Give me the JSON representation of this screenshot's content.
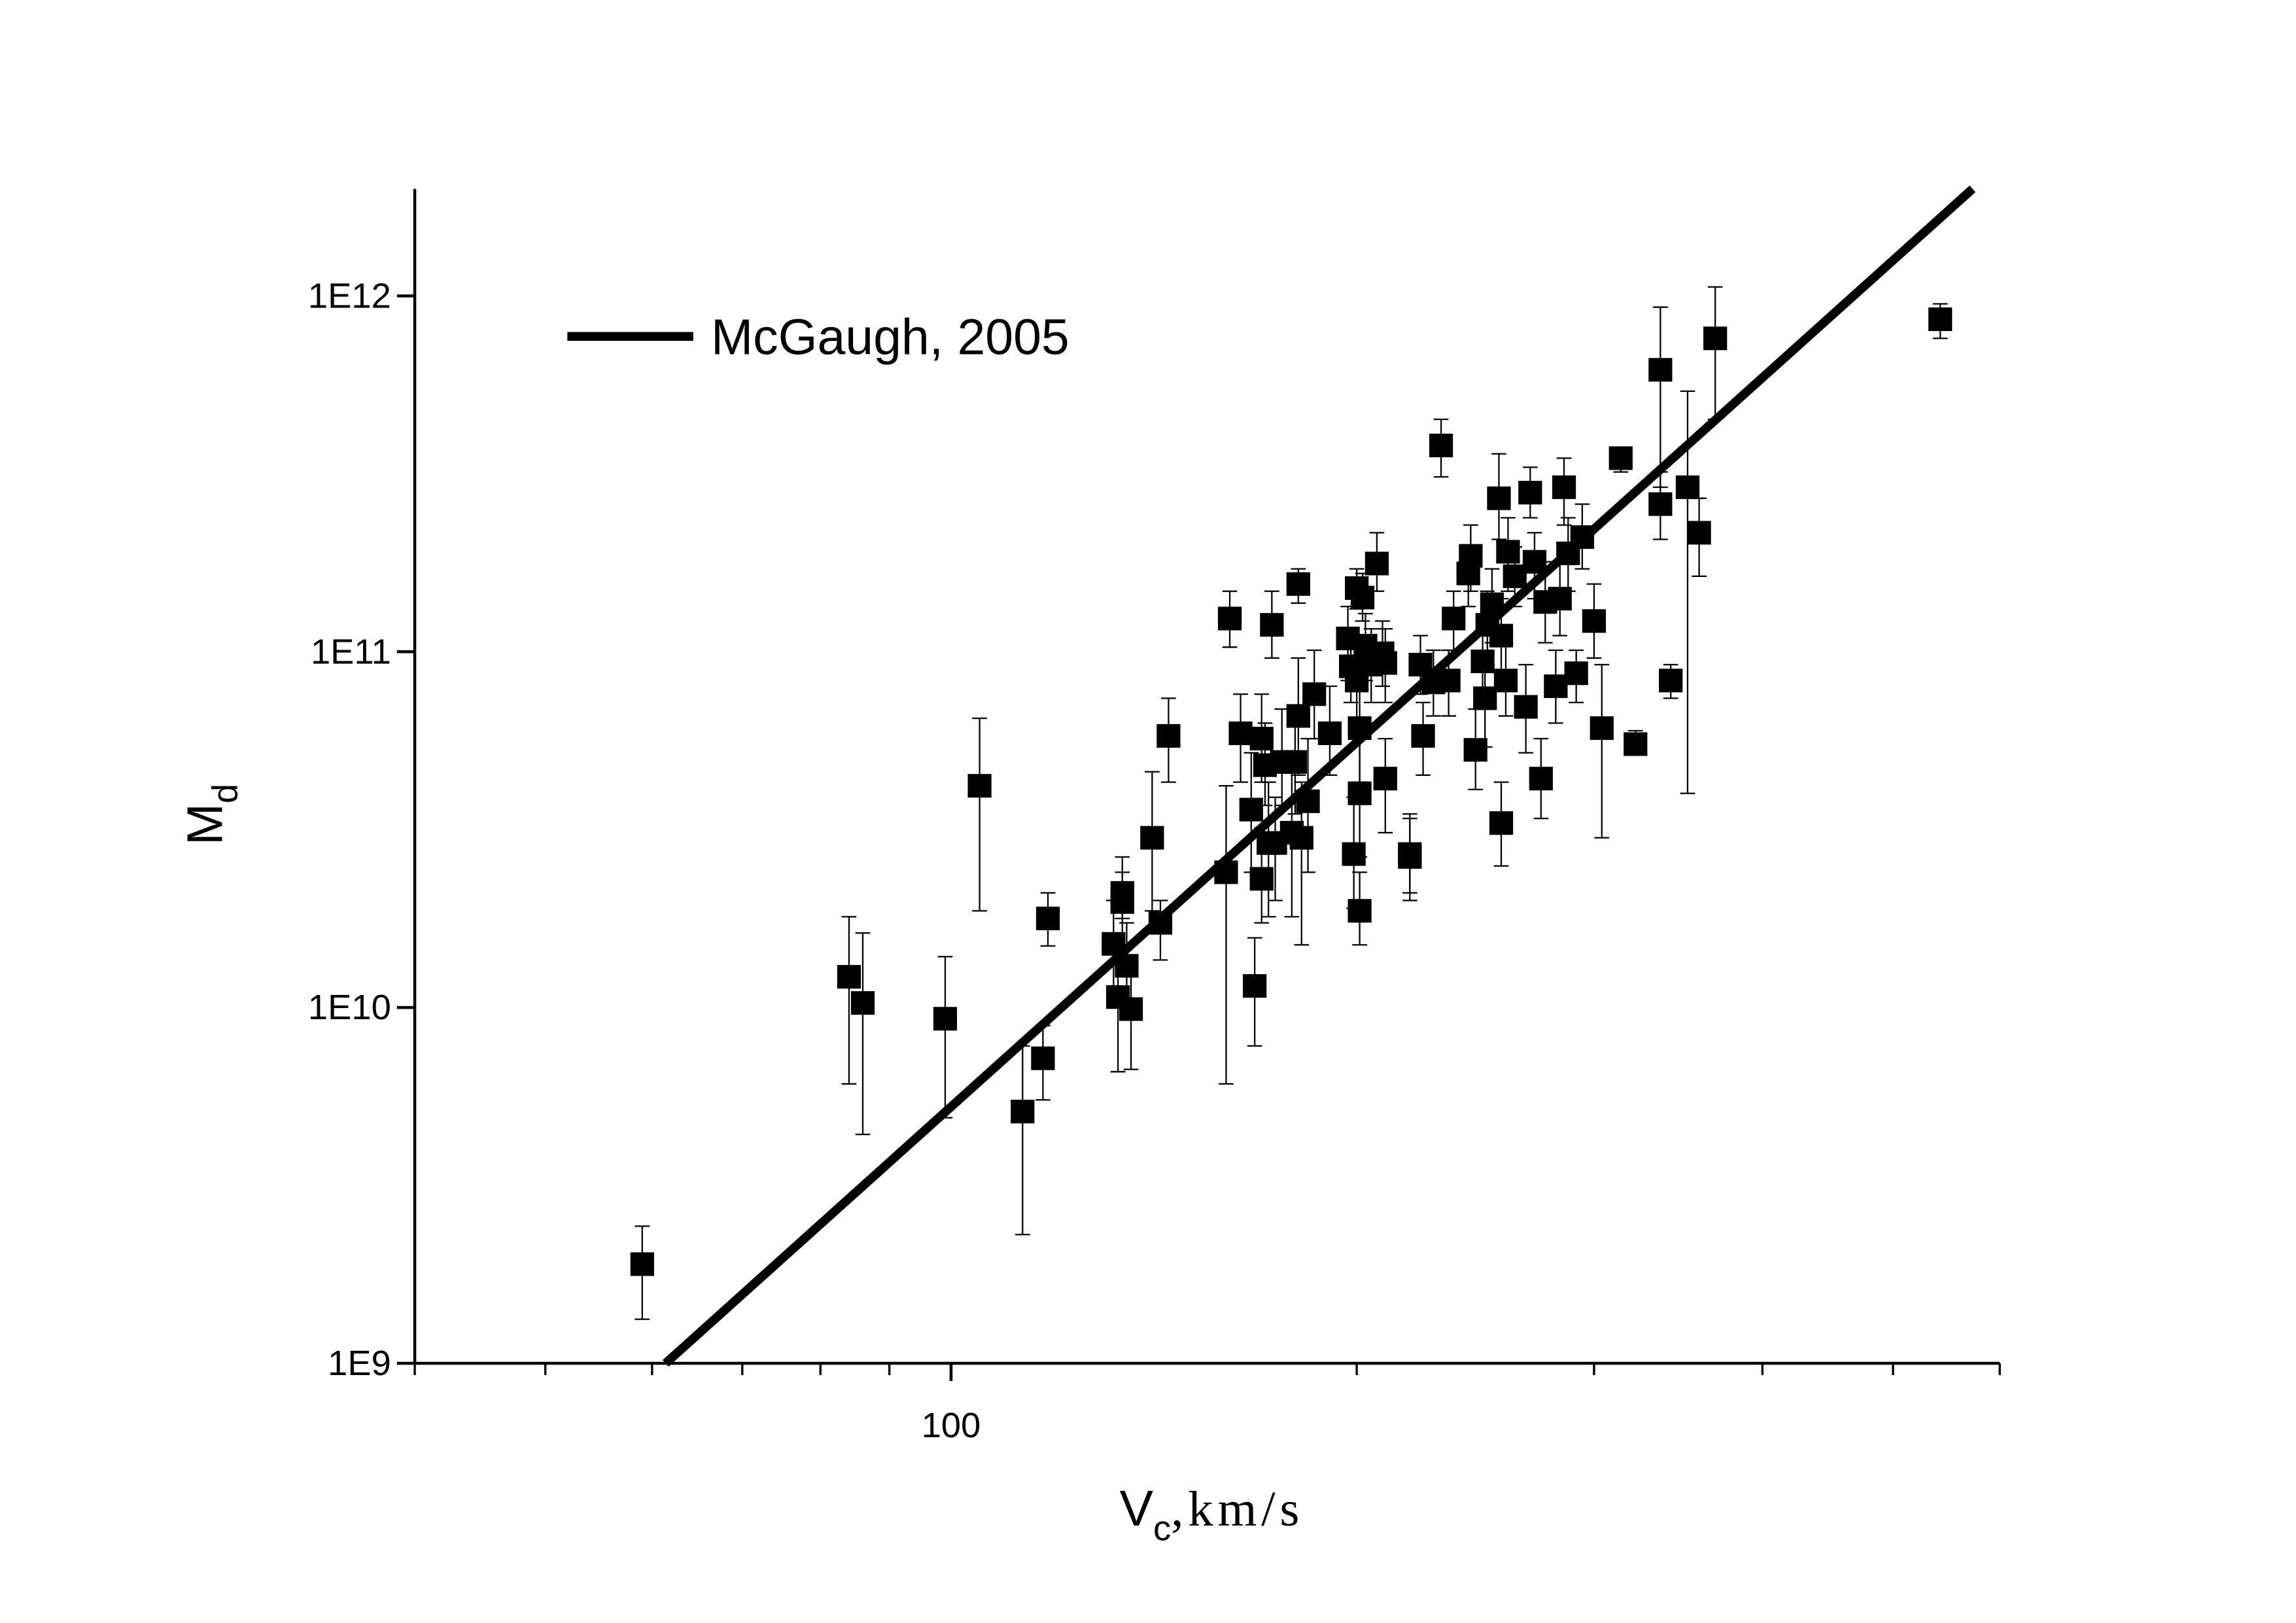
{
  "chart_data": {
    "type": "scatter",
    "xlog": true,
    "ylog": true,
    "xlim": [
      40,
      600
    ],
    "ylim": [
      1000000000.0,
      2000000000000.0
    ],
    "xticks": [
      100
    ],
    "xminorticks": [
      40,
      50,
      60,
      70,
      80,
      90,
      200,
      300,
      400,
      500,
      600
    ],
    "yticks": [
      {
        "value": 1000000000.0,
        "label": "1E9"
      },
      {
        "value": 10000000000.0,
        "label": "1E10"
      },
      {
        "value": 100000000000.0,
        "label": "1E11"
      },
      {
        "value": 1000000000000.0,
        "label": "1E12"
      }
    ],
    "xlabel": {
      "main": "V",
      "sub": "c",
      "rest": ",km/s"
    },
    "ylabel": {
      "main": "M",
      "sub": "d"
    },
    "legend": "upper left",
    "series": [
      {
        "type": "scatter",
        "color": "#000000",
        "x": [
          59,
          84,
          86,
          99,
          105,
          113,
          117,
          118,
          132,
          133,
          134,
          134,
          135,
          136,
          141,
          143,
          145,
          160,
          161,
          164,
          167,
          168,
          170,
          170,
          171,
          172,
          173,
          174,
          176,
          179,
          180,
          181,
          181,
          182,
          184,
          186,
          191,
          197,
          198,
          199,
          200,
          200,
          201,
          201,
          201,
          202,
          203,
          205,
          207,
          209,
          210,
          210,
          219,
          219,
          223,
          224,
          228,
          231,
          234,
          236,
          242,
          243,
          245,
          248,
          249,
          250,
          252,
          255,
          256,
          256,
          258,
          259,
          262,
          267,
          269,
          271,
          274,
          276,
          281,
          283,
          285,
          287,
          291,
          294,
          300,
          304,
          314,
          322,
          336,
          336,
          342,
          352,
          359,
          369,
          542
        ],
        "values": [
          1900000000.0,
          12200000000.0,
          10300000000.0,
          9300000000.0,
          42000000000.0,
          5100000000.0,
          7200000000.0,
          17800000000.0,
          15100000000.0,
          10700000000.0,
          21000000000.0,
          19800000000.0,
          13100000000.0,
          9900000000.0,
          30000000000.0,
          17300000000.0,
          58000000000.0,
          24000000000.0,
          124000000000.0,
          59000000000.0,
          36000000000.0,
          11500000000.0,
          57000000000.0,
          23000000000.0,
          48000000000.0,
          29000000000.0,
          119000000000.0,
          29000000000.0,
          49000000000.0,
          31000000000.0,
          49000000000.0,
          155000000000.0,
          66000000000.0,
          30000000000.0,
          38000000000.0,
          76000000000.0,
          59000000000.0,
          109000000000.0,
          91000000000.0,
          27000000000.0,
          83000000000.0,
          151000000000.0,
          18700000000.0,
          61000000000.0,
          40000000000.0,
          142000000000.0,
          104000000000.0,
          92000000000.0,
          177000000000.0,
          99000000000.0,
          44000000000.0,
          93000000000.0,
          26500000000.0,
          27000000000.0,
          92000000000.0,
          58000000000.0,
          82000000000.0,
          380000000000.0,
          83000000000.0,
          124000000000.0,
          166000000000.0,
          186000000000.0,
          53000000000.0,
          94000000000.0,
          74000000000.0,
          119000000000.0,
          136000000000.0,
          270000000000.0,
          111000000000.0,
          33000000000.0,
          83000000000.0,
          191000000000.0,
          163000000000.0,
          70000000000.0,
          280000000000.0,
          179000000000.0,
          44000000000.0,
          138000000000.0,
          80000000000.0,
          141000000000.0,
          290000000000.0,
          189000000000.0,
          87000000000.0,
          210000000000.0,
          122000000000.0,
          61000000000.0,
          350000000000.0,
          55000000000.0,
          620000000000.0,
          260000000000.0,
          83000000000.0,
          290000000000.0,
          216000000000.0,
          760000000000.0,
          860000000000.0
        ],
        "error_low": [
          1330000000.0,
          6100000000.0,
          4400000000.0,
          4900000000.0,
          18700000000.0,
          2300000000.0,
          5500000000.0,
          14900000000.0,
          11500000000.0,
          6600000000.0,
          17800000000.0,
          15000000000.0,
          9900000000.0,
          6700000000.0,
          18700000000.0,
          13600000000.0,
          43000000000.0,
          6100000000.0,
          103000000000.0,
          43000000000.0,
          24000000000.0,
          7800000000.0,
          43000000000.0,
          17300000000.0,
          37000000000.0,
          18000000000.0,
          96000000000.0,
          20000000000.0,
          37000000000.0,
          18000000000.0,
          35000000000.0,
          137000000000.0,
          45000000000.0,
          15000000000.0,
          24000000000.0,
          57000000000.0,
          45000000000.0,
          83000000000.0,
          72000000000.0,
          19000000000.0,
          63000000000.0,
          132000000000.0,
          15000000000.0,
          43000000000.0,
          26500000000.0,
          122000000000.0,
          83000000000.0,
          72000000000.0,
          148000000000.0,
          80000000000.0,
          31000000000.0,
          72000000000.0,
          20000000000.0,
          21000000000.0,
          76000000000.0,
          45000000000.0,
          66000000000.0,
          310000000000.0,
          66000000000.0,
          101000000000.0,
          134000000000.0,
          148000000000.0,
          41000000000.0,
          69000000000.0,
          54000000000.0,
          92000000000.0,
          106000000000.0,
          207000000000.0,
          87000000000.0,
          25000000000.0,
          66000000000.0,
          148000000000.0,
          134000000000.0,
          52000000000.0,
          238000000000.0,
          141000000000.0,
          34000000000.0,
          106000000000.0,
          63000000000.0,
          111000000000.0,
          227000000000.0,
          148000000000.0,
          72000000000.0,
          171000000000.0,
          96000000000.0,
          30000000000.0,
          320000000000.0,
          52000000000.0,
          290000000000.0,
          207000000000.0,
          74000000000.0,
          40000000000.0,
          163000000000.0,
          450000000000.0,
          760000000000.0
        ],
        "error_high": [
          2430000000.0,
          18000000000.0,
          16200000000.0,
          13900000000.0,
          65000000000.0,
          7800000000.0,
          8900000000.0,
          21000000000.0,
          20000000000.0,
          15000000000.0,
          24000000000.0,
          26500000000.0,
          17300000000.0,
          13600000000.0,
          46000000000.0,
          20000000000.0,
          74000000000.0,
          42000000000.0,
          148000000000.0,
          76000000000.0,
          52000000000.0,
          15700000000.0,
          76000000000.0,
          32000000000.0,
          63000000000.0,
          43000000000.0,
          148000000000.0,
          39000000000.0,
          69000000000.0,
          47000000000.0,
          63000000000.0,
          171000000000.0,
          96000000000.0,
          43000000000.0,
          57000000000.0,
          101000000000.0,
          80000000000.0,
          134000000000.0,
          111000000000.0,
          39000000000.0,
          106000000000.0,
          171000000000.0,
          24000000000.0,
          83000000000.0,
          57000000000.0,
          166000000000.0,
          128000000000.0,
          116000000000.0,
          216000000000.0,
          122000000000.0,
          57000000000.0,
          116000000000.0,
          34000000000.0,
          35000000000.0,
          111000000000.0,
          72000000000.0,
          101000000000.0,
          450000000000.0,
          101000000000.0,
          148000000000.0,
          197000000000.0,
          227000000000.0,
          69000000000.0,
          122000000000.0,
          96000000000.0,
          148000000000.0,
          171000000000.0,
          360000000000.0,
          141000000000.0,
          43000000000.0,
          106000000000.0,
          238000000000.0,
          197000000000.0,
          92000000000.0,
          330000000000.0,
          216000000000.0,
          57000000000.0,
          179000000000.0,
          101000000000.0,
          179000000000.0,
          350000000000.0,
          238000000000.0,
          101000000000.0,
          260000000000.0,
          155000000000.0,
          92000000000.0,
          370000000000.0,
          60000000000.0,
          930000000000.0,
          320000000000.0,
          92000000000.0,
          540000000000.0,
          270000000000.0,
          1060000000000.0,
          950000000000.0
        ]
      },
      {
        "type": "line",
        "name": "McGaugh, 2005",
        "color": "#000000",
        "x": [
          61.4,
          572.8
        ],
        "values": [
          1000000000.0,
          2000000000000.0
        ]
      }
    ]
  }
}
